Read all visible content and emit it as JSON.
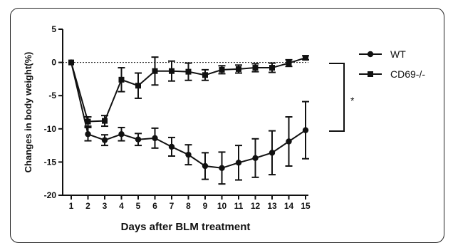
{
  "chart_data": {
    "type": "line",
    "xlabel": "Days after BLM treatment",
    "ylabel": "Changes in body weight(%)",
    "x": [
      1,
      2,
      3,
      4,
      5,
      6,
      7,
      8,
      9,
      10,
      11,
      12,
      13,
      14,
      15
    ],
    "xlim": [
      1,
      15
    ],
    "ylim": [
      -20,
      5
    ],
    "yticks": [
      5,
      0,
      -5,
      -10,
      -15,
      -20
    ],
    "xticks": [
      "1",
      "2",
      "3",
      "4",
      "5",
      "6",
      "7",
      "8",
      "9",
      "10",
      "11",
      "12",
      "13",
      "14",
      "15"
    ],
    "reference_line": 0,
    "series": [
      {
        "name": "WT",
        "marker": "circle",
        "values": [
          0,
          -10.8,
          -11.7,
          -10.8,
          -11.6,
          -11.4,
          -12.7,
          -13.9,
          -15.6,
          -15.9,
          -15.1,
          -14.4,
          -13.6,
          -11.9,
          -10.2
        ],
        "errors": [
          0,
          1.0,
          0.8,
          1.0,
          0.9,
          1.5,
          1.4,
          1.5,
          2.0,
          2.4,
          2.6,
          2.9,
          3.3,
          3.7,
          4.3
        ]
      },
      {
        "name": "CD69-/-",
        "marker": "square",
        "values": [
          0,
          -8.9,
          -8.8,
          -2.6,
          -3.5,
          -1.3,
          -1.3,
          -1.4,
          -1.9,
          -1.1,
          -1.0,
          -0.8,
          -0.8,
          -0.1,
          0.7
        ],
        "errors": [
          0,
          0.7,
          0.8,
          1.8,
          1.9,
          2.1,
          1.5,
          1.3,
          0.8,
          0.6,
          0.6,
          0.6,
          0.7,
          0.5,
          0.3
        ]
      }
    ],
    "legend_position": "right",
    "annotation": "*"
  }
}
